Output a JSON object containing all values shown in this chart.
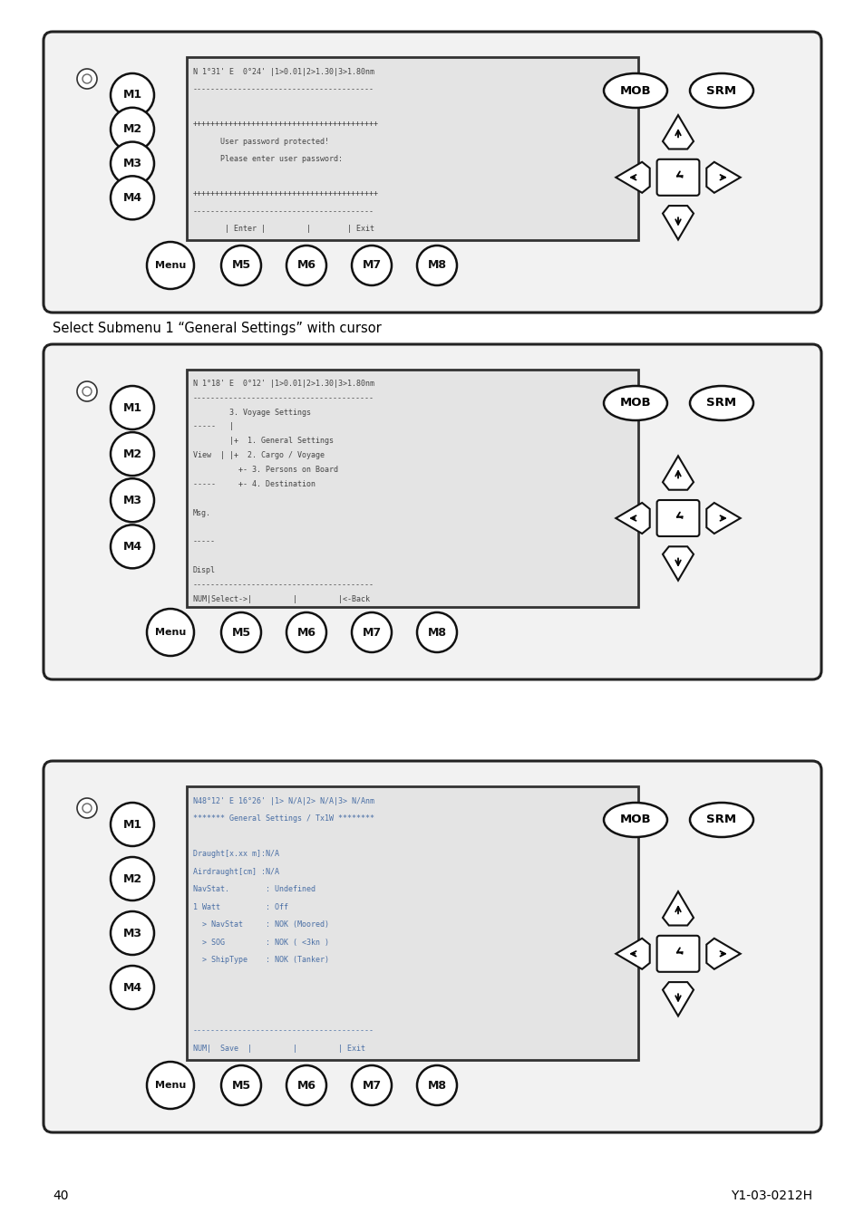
{
  "page_number": "40",
  "doc_ref": "Y1-03-0212H",
  "bg_color": "#ffffff",
  "caption1": "Select Submenu 1 “General Settings” with cursor",
  "panel1_lines": [
    "N 1°31' E  0°24' |1>0.01|2>1.30|3>1.80nm",
    "----------------------------------------",
    "",
    "+++++++++++++++++++++++++++++++++++++++++",
    "      User password protected!",
    "      Please enter user password:",
    "",
    "+++++++++++++++++++++++++++++++++++++++++",
    "----------------------------------------",
    "       | Enter |         |        | Exit"
  ],
  "panel1_text_color": "#444444",
  "panel2_lines": [
    "N 1°18' E  0°12' |1>0.01|2>1.30|3>1.80nm",
    "----------------------------------------",
    "        3. Voyage Settings",
    "-----   |",
    "        |+  1. General Settings",
    "View  | |+  2. Cargo / Voyage",
    "          +- 3. Persons on Board",
    "-----     +- 4. Destination",
    "",
    "Msg.",
    "",
    "-----",
    "",
    "Displ",
    "----------------------------------------",
    "NUM|Select->|         |         |<-Back"
  ],
  "panel2_text_color": "#444444",
  "panel3_lines": [
    "N48°12' E 16°26' |1> N/A|2> N/A|3> N/Anm",
    "******* General Settings / Tx1W ********",
    "",
    "Draught[x.xx m]:N/A",
    "Airdraught[cm] :N/A",
    "NavStat.        : Undefined",
    "1 Watt          : Off",
    "  > NavStat     : NOK (Moored)",
    "  > SOG         : NOK ( <3kn )",
    "  > ShipType    : NOK (Tanker)",
    "",
    "",
    "",
    "----------------------------------------",
    "NUM|  Save  |         |         | Exit"
  ],
  "panel3_text_color": "#4a6fa5"
}
